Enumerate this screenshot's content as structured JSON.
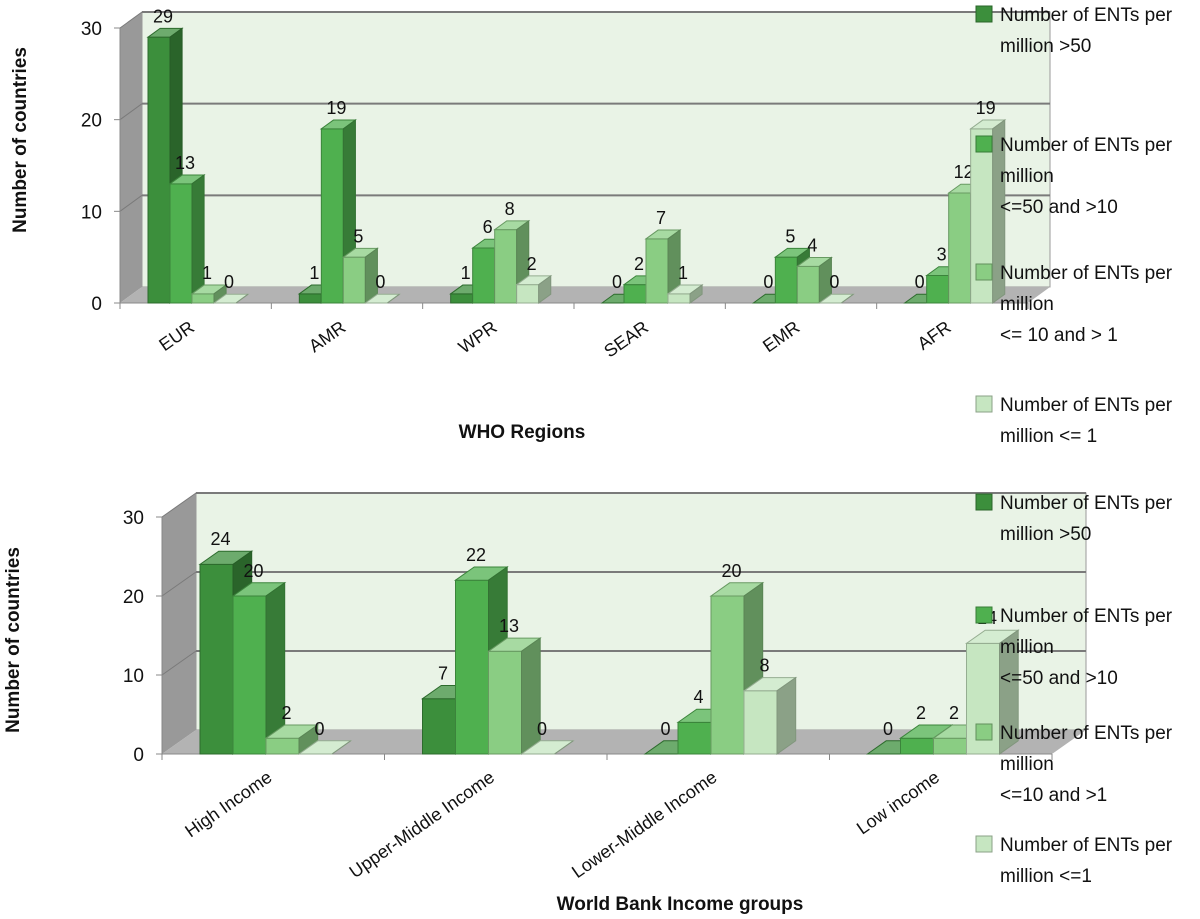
{
  "chart_data": [
    {
      "type": "bar",
      "xlabel": "WHO Regions",
      "ylabel": "Number of countries",
      "ylim": [
        0,
        30
      ],
      "yticks": [
        "0",
        "10",
        "20",
        "30"
      ],
      "grid": true,
      "legend_position": "right",
      "categories": [
        "EUR",
        "AMR",
        "WPR",
        "SEAR",
        "EMR",
        "AFR"
      ],
      "series": [
        {
          "name": [
            "Number of ENTs per",
            "million >50"
          ],
          "values": [
            29,
            1,
            1,
            0,
            0,
            0
          ]
        },
        {
          "name": [
            "Number of ENTs per",
            "million",
            "<=50 and >10"
          ],
          "values": [
            13,
            19,
            6,
            2,
            5,
            3
          ]
        },
        {
          "name": [
            "Number of ENTs per",
            "million",
            "<= 10 and > 1"
          ],
          "values": [
            1,
            5,
            8,
            7,
            4,
            12
          ]
        },
        {
          "name": [
            "Number of ENTs per",
            "million <= 1"
          ],
          "values": [
            0,
            0,
            2,
            1,
            0,
            19
          ]
        }
      ]
    },
    {
      "type": "bar",
      "xlabel": "World Bank Income groups",
      "ylabel": "Number of countries",
      "ylim": [
        0,
        30
      ],
      "yticks": [
        "0",
        "10",
        "20",
        "30"
      ],
      "grid": true,
      "legend_position": "right",
      "categories": [
        "High Income",
        "Upper-Middle Income",
        "Lower-Middle Income",
        "Low income"
      ],
      "series": [
        {
          "name": [
            "Number of ENTs per",
            "million >50"
          ],
          "values": [
            24,
            7,
            0,
            0
          ]
        },
        {
          "name": [
            "Number of ENTs per",
            "million",
            "<=50 and >10"
          ],
          "values": [
            20,
            22,
            4,
            2
          ]
        },
        {
          "name": [
            "Number of ENTs per",
            "million",
            "<=10 and >1"
          ],
          "values": [
            2,
            13,
            20,
            2
          ]
        },
        {
          "name": [
            "Number of ENTs per",
            "million <=1"
          ],
          "values": [
            0,
            0,
            8,
            14
          ]
        }
      ]
    }
  ],
  "colors": {
    "series": [
      "#3c8f3c",
      "#4fb04f",
      "#8acd83",
      "#c6e6c1"
    ],
    "plot_bg": "#e9f3e6",
    "wall_side": "#999999",
    "floor": "#b3b3b3",
    "gridline": "#7a7a7a"
  }
}
